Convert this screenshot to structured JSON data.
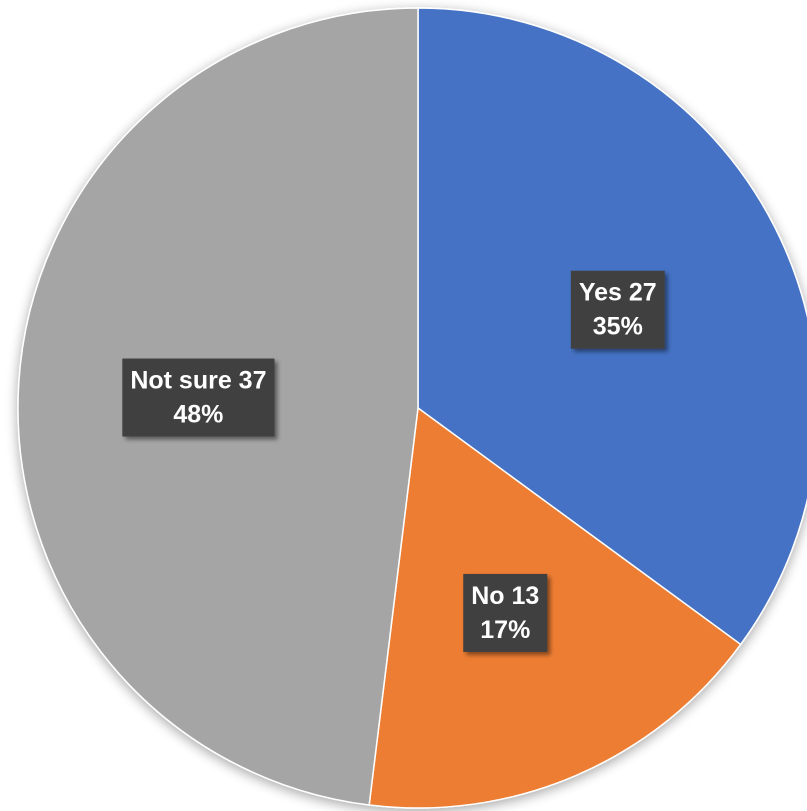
{
  "chart_data": {
    "type": "pie",
    "slices": [
      {
        "label": "Yes",
        "value": 27,
        "percent": "35%",
        "color": "#4472C4",
        "data_label_line1": "Yes 27",
        "data_label_line2": "35%"
      },
      {
        "label": "No",
        "value": 13,
        "percent": "17%",
        "color": "#ED7D31",
        "data_label_line1": "No 13",
        "data_label_line2": "17%"
      },
      {
        "label": "Not sure",
        "value": 37,
        "percent": "48%",
        "color": "#A5A5A5",
        "data_label_line1": "Not sure 37",
        "data_label_line2": "48%"
      }
    ],
    "start_angle": "12 o'clock",
    "direction": "clockwise",
    "legend": "none"
  }
}
